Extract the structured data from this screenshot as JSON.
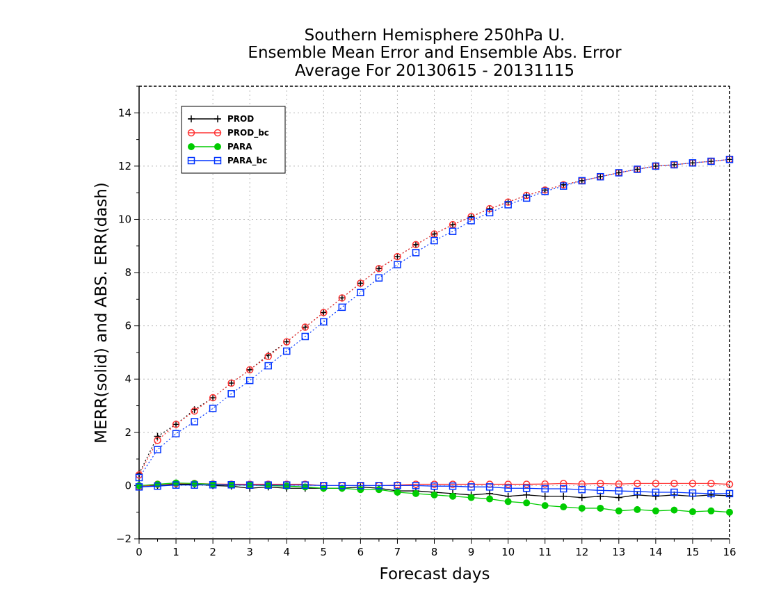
{
  "chart_data": {
    "type": "line",
    "title": [
      "Southern Hemisphere 250hPa U.",
      "Ensemble Mean Error and Ensemble Abs. Error",
      "Average For 20130615 - 20131115"
    ],
    "xlabel": "Forecast days",
    "ylabel": "MERR(solid) and ABS. ERR(dash)",
    "xlim": [
      0,
      16
    ],
    "ylim": [
      -2,
      15
    ],
    "xticks": [
      0,
      1,
      2,
      3,
      4,
      5,
      6,
      7,
      8,
      9,
      10,
      11,
      12,
      13,
      14,
      15,
      16
    ],
    "yticks": [
      -2,
      0,
      2,
      4,
      6,
      8,
      10,
      12,
      14
    ],
    "grid": true,
    "legend_position": "top-left",
    "x": [
      0,
      0.5,
      1,
      1.5,
      2,
      2.5,
      3,
      3.5,
      4,
      4.5,
      5,
      5.5,
      6,
      6.5,
      7,
      7.5,
      8,
      8.5,
      9,
      9.5,
      10,
      10.5,
      11,
      11.5,
      12,
      12.5,
      13,
      13.5,
      14,
      14.5,
      15,
      15.5,
      16
    ],
    "series": [
      {
        "name": "PROD",
        "color": "#000000",
        "marker": "plus",
        "mean_error": [
          -0.05,
          0.0,
          0.05,
          0.05,
          0.0,
          -0.02,
          -0.1,
          -0.05,
          -0.1,
          -0.1,
          -0.1,
          -0.1,
          -0.05,
          -0.1,
          -0.2,
          -0.2,
          -0.25,
          -0.3,
          -0.35,
          -0.3,
          -0.4,
          -0.35,
          -0.4,
          -0.4,
          -0.45,
          -0.4,
          -0.45,
          -0.35,
          -0.4,
          -0.35,
          -0.4,
          -0.35,
          -0.38
        ],
        "abs_error": [
          0.45,
          1.85,
          2.3,
          2.85,
          3.3,
          3.85,
          4.35,
          4.9,
          5.4,
          5.95,
          6.5,
          7.05,
          7.6,
          8.15,
          8.6,
          9.05,
          9.45,
          9.8,
          10.1,
          10.4,
          10.65,
          10.9,
          11.1,
          11.3,
          11.45,
          11.6,
          11.75,
          11.88,
          12.0,
          12.05,
          12.12,
          12.18,
          12.25
        ]
      },
      {
        "name": "PROD_bc",
        "color": "#ff3333",
        "marker": "circle-open",
        "mean_error": [
          -0.05,
          0.05,
          0.08,
          0.08,
          0.06,
          0.05,
          0.05,
          0.05,
          0.05,
          0.05,
          0.0,
          0.0,
          0.0,
          0.0,
          0.02,
          0.05,
          0.05,
          0.05,
          0.05,
          0.05,
          0.05,
          0.05,
          0.06,
          0.08,
          0.06,
          0.08,
          0.06,
          0.08,
          0.08,
          0.08,
          0.08,
          0.08,
          0.05
        ],
        "abs_error": [
          0.4,
          1.7,
          2.3,
          2.8,
          3.3,
          3.85,
          4.35,
          4.85,
          5.4,
          5.95,
          6.5,
          7.05,
          7.6,
          8.15,
          8.6,
          9.05,
          9.45,
          9.8,
          10.1,
          10.4,
          10.65,
          10.9,
          11.1,
          11.3,
          11.45,
          11.6,
          11.75,
          11.88,
          12.0,
          12.05,
          12.12,
          12.18,
          12.25
        ]
      },
      {
        "name": "PARA",
        "color": "#00cc00",
        "marker": "circle-filled",
        "mean_error": [
          0.0,
          0.05,
          0.1,
          0.08,
          0.05,
          0.02,
          0.02,
          0.0,
          -0.02,
          -0.05,
          -0.1,
          -0.1,
          -0.15,
          -0.15,
          -0.25,
          -0.3,
          -0.35,
          -0.4,
          -0.45,
          -0.5,
          -0.6,
          -0.65,
          -0.75,
          -0.8,
          -0.85,
          -0.85,
          -0.95,
          -0.9,
          -0.95,
          -0.92,
          -0.98,
          -0.95,
          -1.0
        ]
      },
      {
        "name": "PARA_bc",
        "color": "#0033ff",
        "marker": "square-open",
        "mean_error": [
          -0.05,
          -0.02,
          0.02,
          0.02,
          0.03,
          0.03,
          0.02,
          0.02,
          0.02,
          0.02,
          0.0,
          0.0,
          0.0,
          0.0,
          0.0,
          0.0,
          -0.02,
          -0.02,
          -0.05,
          -0.05,
          -0.1,
          -0.1,
          -0.12,
          -0.12,
          -0.15,
          -0.18,
          -0.2,
          -0.22,
          -0.25,
          -0.25,
          -0.28,
          -0.3,
          -0.3
        ],
        "abs_error": [
          0.3,
          1.35,
          1.95,
          2.4,
          2.9,
          3.45,
          3.95,
          4.5,
          5.05,
          5.6,
          6.15,
          6.7,
          7.25,
          7.8,
          8.3,
          8.75,
          9.2,
          9.55,
          9.95,
          10.25,
          10.55,
          10.8,
          11.05,
          11.25,
          11.45,
          11.6,
          11.75,
          11.88,
          12.0,
          12.05,
          12.12,
          12.18,
          12.25
        ]
      }
    ]
  }
}
